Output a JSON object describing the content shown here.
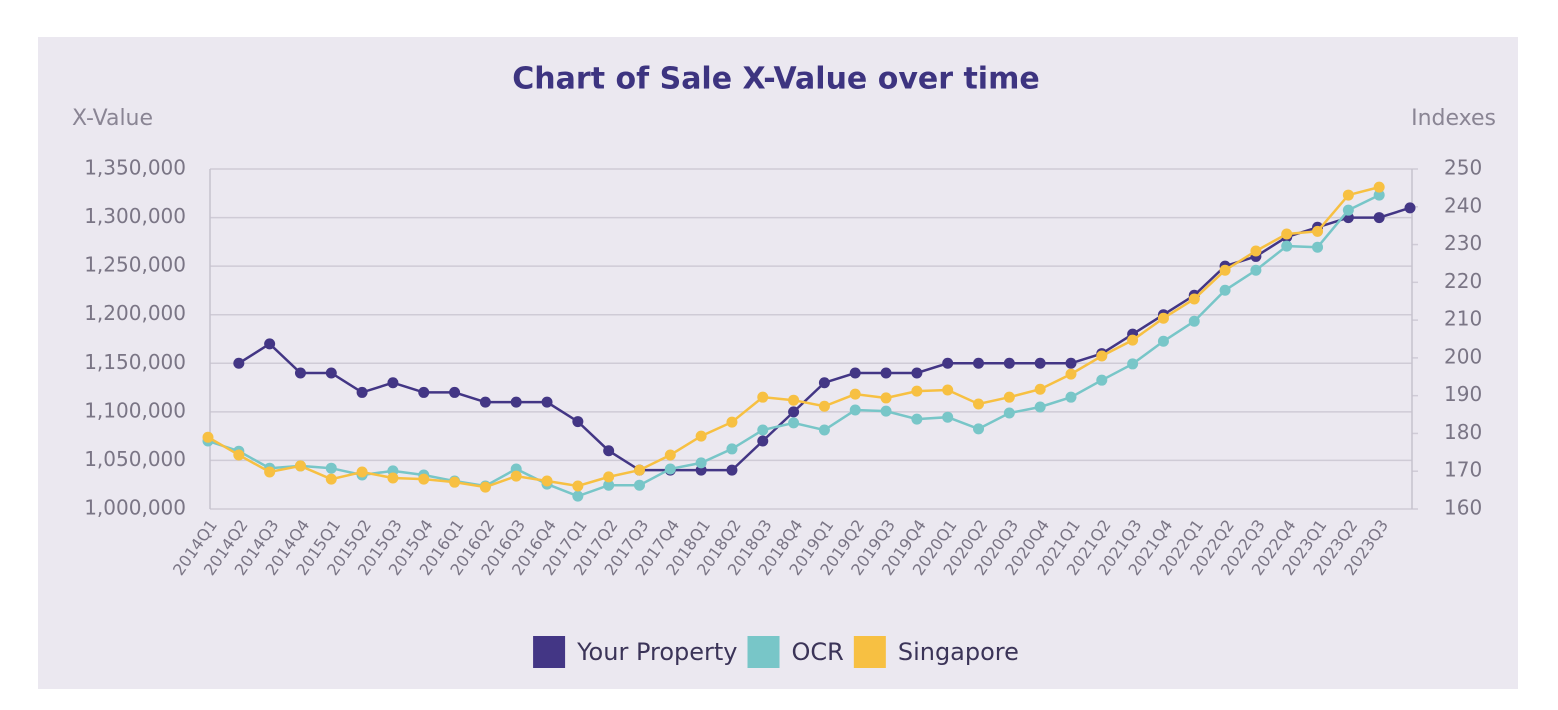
{
  "chart_data": {
    "type": "line",
    "title": "Chart of Sale X-Value over time",
    "y_label": "X-Value",
    "y2_label": "Indexes",
    "categories": [
      "2014Q1",
      "2014Q2",
      "2014Q3",
      "2014Q4",
      "2015Q1",
      "2015Q2",
      "2015Q3",
      "2015Q4",
      "2016Q1",
      "2016Q2",
      "2016Q3",
      "2016Q4",
      "2017Q1",
      "2017Q2",
      "2017Q3",
      "2017Q4",
      "2018Q1",
      "2018Q2",
      "2018Q3",
      "2018Q4",
      "2019Q1",
      "2019Q2",
      "2019Q3",
      "2019Q4",
      "2020Q1",
      "2020Q2",
      "2020Q3",
      "2020Q4",
      "2021Q1",
      "2021Q2",
      "2021Q3",
      "2021Q4",
      "2022Q1",
      "2022Q2",
      "2022Q3",
      "2022Q4",
      "2023Q1",
      "2023Q2",
      "2023Q3",
      null
    ],
    "series": [
      {
        "name": "Your Property",
        "color": "#433685",
        "axis": "y",
        "values": [
          null,
          1150000,
          1170000,
          1140000,
          1140000,
          1120000,
          1130000,
          1120000,
          1120000,
          1110000,
          1110000,
          1110000,
          1090000,
          1060000,
          1040000,
          1040000,
          1040000,
          1040000,
          1070000,
          1100000,
          1130000,
          1140000,
          1140000,
          1140000,
          1150000,
          1150000,
          1150000,
          1150000,
          1150000,
          1160000,
          1180000,
          1200000,
          1220000,
          1250000,
          1260000,
          1280000,
          1290000,
          1300000,
          1300000,
          1310000
        ]
      },
      {
        "name": "OCR",
        "color": "#78c6c8",
        "axis": "y2",
        "values": [
          178.0,
          175.3,
          170.8,
          171.4,
          170.8,
          169.0,
          170.1,
          169.0,
          167.4,
          166.1,
          170.6,
          166.6,
          163.4,
          166.3,
          166.3,
          170.6,
          172.2,
          175.9,
          180.9,
          182.8,
          180.9,
          186.2,
          185.9,
          183.8,
          184.3,
          181.2,
          185.4,
          187.0,
          189.6,
          194.1,
          198.4,
          204.4,
          209.7,
          217.9,
          223.2,
          229.6,
          229.3,
          239.1,
          243.1,
          null
        ]
      },
      {
        "name": "Singapore",
        "color": "#f7c042",
        "axis": "y2",
        "values": [
          179.0,
          174.3,
          169.8,
          171.4,
          167.9,
          169.8,
          168.2,
          167.9,
          167.1,
          165.8,
          168.7,
          167.4,
          166.1,
          168.5,
          170.3,
          174.3,
          179.3,
          183.0,
          189.6,
          188.8,
          187.2,
          190.4,
          189.4,
          191.2,
          191.5,
          187.8,
          189.6,
          191.7,
          195.7,
          200.5,
          204.7,
          210.5,
          215.6,
          223.2,
          228.3,
          232.8,
          233.5,
          243.1,
          245.2,
          null
        ]
      }
    ],
    "ylim": [
      1000000,
      1350000
    ],
    "yticks": [
      {
        "value": 1000000,
        "label": "1,000,000"
      },
      {
        "value": 1050000,
        "label": "1,050,000"
      },
      {
        "value": 1100000,
        "label": "1,100,000"
      },
      {
        "value": 1150000,
        "label": "1,150,000"
      },
      {
        "value": 1200000,
        "label": "1,200,000"
      },
      {
        "value": 1250000,
        "label": "1,250,000"
      },
      {
        "value": 1300000,
        "label": "1,300,000"
      },
      {
        "value": 1350000,
        "label": "1,350,000"
      }
    ],
    "y2lim": [
      160,
      250
    ],
    "y2ticks": [
      160,
      170,
      180,
      190,
      200,
      210,
      220,
      230,
      240,
      250
    ],
    "grid": true,
    "legend": "bottom"
  }
}
